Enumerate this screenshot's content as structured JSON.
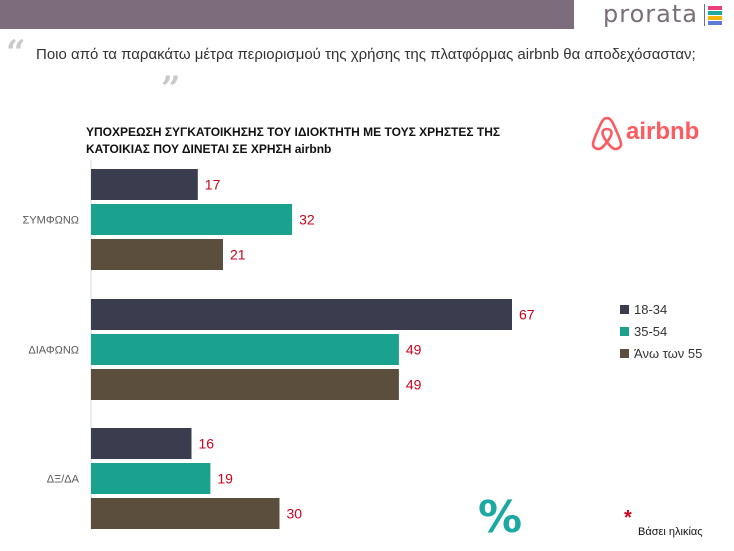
{
  "brand": {
    "name": "prorata",
    "stripe_colors": [
      "#e8407e",
      "#1ba9a1",
      "#f4b400",
      "#5b7bd5"
    ]
  },
  "question": "Ποιο από τα παρακάτω μέτρα περιορισμού της χρήσης της πλατφόρμας airbnb θα αποδεχόσασταν;",
  "airbnb_logo": {
    "text": "airbnb",
    "color": "#ff5a5f"
  },
  "footnote": "Βάσει ηλικίας",
  "chart_data": {
    "type": "bar",
    "orientation": "horizontal",
    "title": "ΥΠΟΧΡΕΩΣΗ ΣΥΓΚΑΤΟΙΚΗΣΗΣ ΤΟΥ ΙΔΙΟΚΤΗΤΗ ΜΕ ΤΟΥΣ ΧΡΗΣΤΕΣ ΤΗΣ ΚΑΤΟΙΚΙΑΣ ΠΟΥ ΔΙΝΕΤΑΙ ΣΕ ΧΡΗΣΗ airbnb",
    "categories": [
      "ΣΥΜΦΩΝΩ",
      "ΔΙΑΦΩΝΩ",
      "ΔΞ/ΔΑ"
    ],
    "series": [
      {
        "name": "18-34",
        "color": "#3b3d4e",
        "values": [
          17,
          67,
          16
        ]
      },
      {
        "name": "35-54",
        "color": "#1ba28e",
        "values": [
          32,
          49,
          19
        ]
      },
      {
        "name": "Άνω των 55",
        "color": "#5c4e3d",
        "values": [
          21,
          49,
          30
        ]
      }
    ],
    "value_label_color": "#d0021b",
    "xlim": [
      0,
      75
    ],
    "legend_position": "right",
    "grid": false
  }
}
